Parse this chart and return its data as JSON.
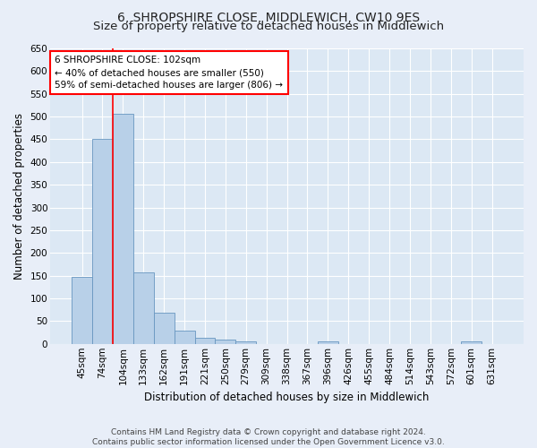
{
  "title": "6, SHROPSHIRE CLOSE, MIDDLEWICH, CW10 9ES",
  "subtitle": "Size of property relative to detached houses in Middlewich",
  "xlabel": "Distribution of detached houses by size in Middlewich",
  "ylabel": "Number of detached properties",
  "categories": [
    "45sqm",
    "74sqm",
    "104sqm",
    "133sqm",
    "162sqm",
    "191sqm",
    "221sqm",
    "250sqm",
    "279sqm",
    "309sqm",
    "338sqm",
    "367sqm",
    "396sqm",
    "426sqm",
    "455sqm",
    "484sqm",
    "514sqm",
    "543sqm",
    "572sqm",
    "601sqm",
    "631sqm"
  ],
  "values": [
    148,
    450,
    507,
    158,
    68,
    30,
    13,
    10,
    5,
    0,
    0,
    0,
    6,
    0,
    0,
    0,
    0,
    0,
    0,
    6,
    0
  ],
  "bar_color": "#b8d0e8",
  "bar_edge_color": "#6896c0",
  "bar_edge_width": 0.6,
  "red_line_x": 1.5,
  "annotation_text": "6 SHROPSHIRE CLOSE: 102sqm\n← 40% of detached houses are smaller (550)\n59% of semi-detached houses are larger (806) →",
  "annotation_box_color": "white",
  "annotation_box_edge_color": "red",
  "ylim": [
    0,
    650
  ],
  "yticks": [
    0,
    50,
    100,
    150,
    200,
    250,
    300,
    350,
    400,
    450,
    500,
    550,
    600,
    650
  ],
  "footer": "Contains HM Land Registry data © Crown copyright and database right 2024.\nContains public sector information licensed under the Open Government Licence v3.0.",
  "bg_color": "#e8eef8",
  "plot_bg_color": "#dce8f4",
  "grid_color": "#ffffff",
  "title_fontsize": 10,
  "subtitle_fontsize": 9.5,
  "axis_label_fontsize": 8.5,
  "tick_fontsize": 7.5,
  "annotation_fontsize": 7.5,
  "footer_fontsize": 6.5
}
